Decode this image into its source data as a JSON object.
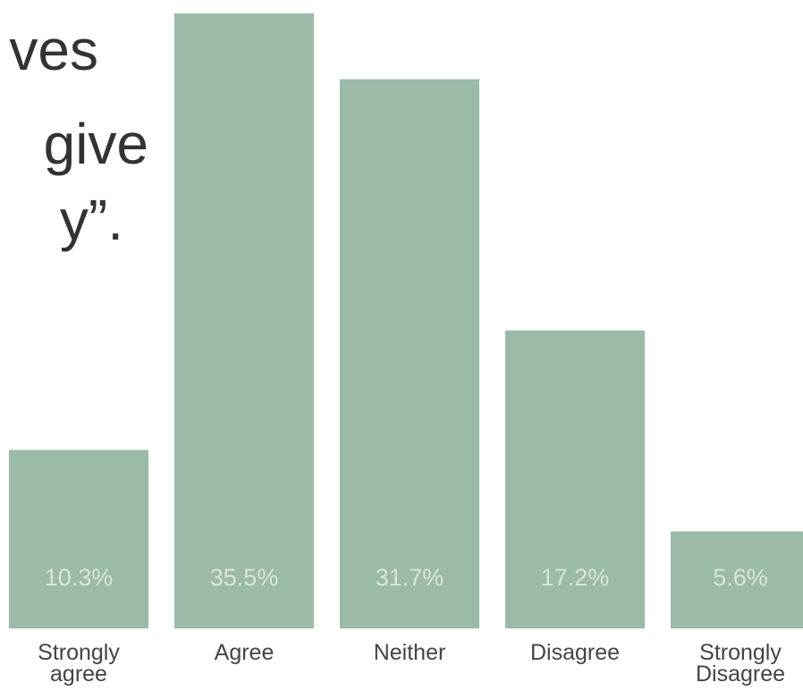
{
  "chart_data": {
    "type": "bar",
    "title_lines": [
      "ves",
      "give",
      "y”."
    ],
    "categories": [
      "Strongly agree",
      "Agree",
      "Neither",
      "Disagree",
      "Strongly Disagree"
    ],
    "values": [
      10.3,
      35.5,
      31.7,
      17.2,
      5.6
    ],
    "value_labels": [
      "10.3%",
      "35.5%",
      "31.7%",
      "17.2%",
      "5.6%"
    ],
    "color": "#9bbaa8"
  }
}
